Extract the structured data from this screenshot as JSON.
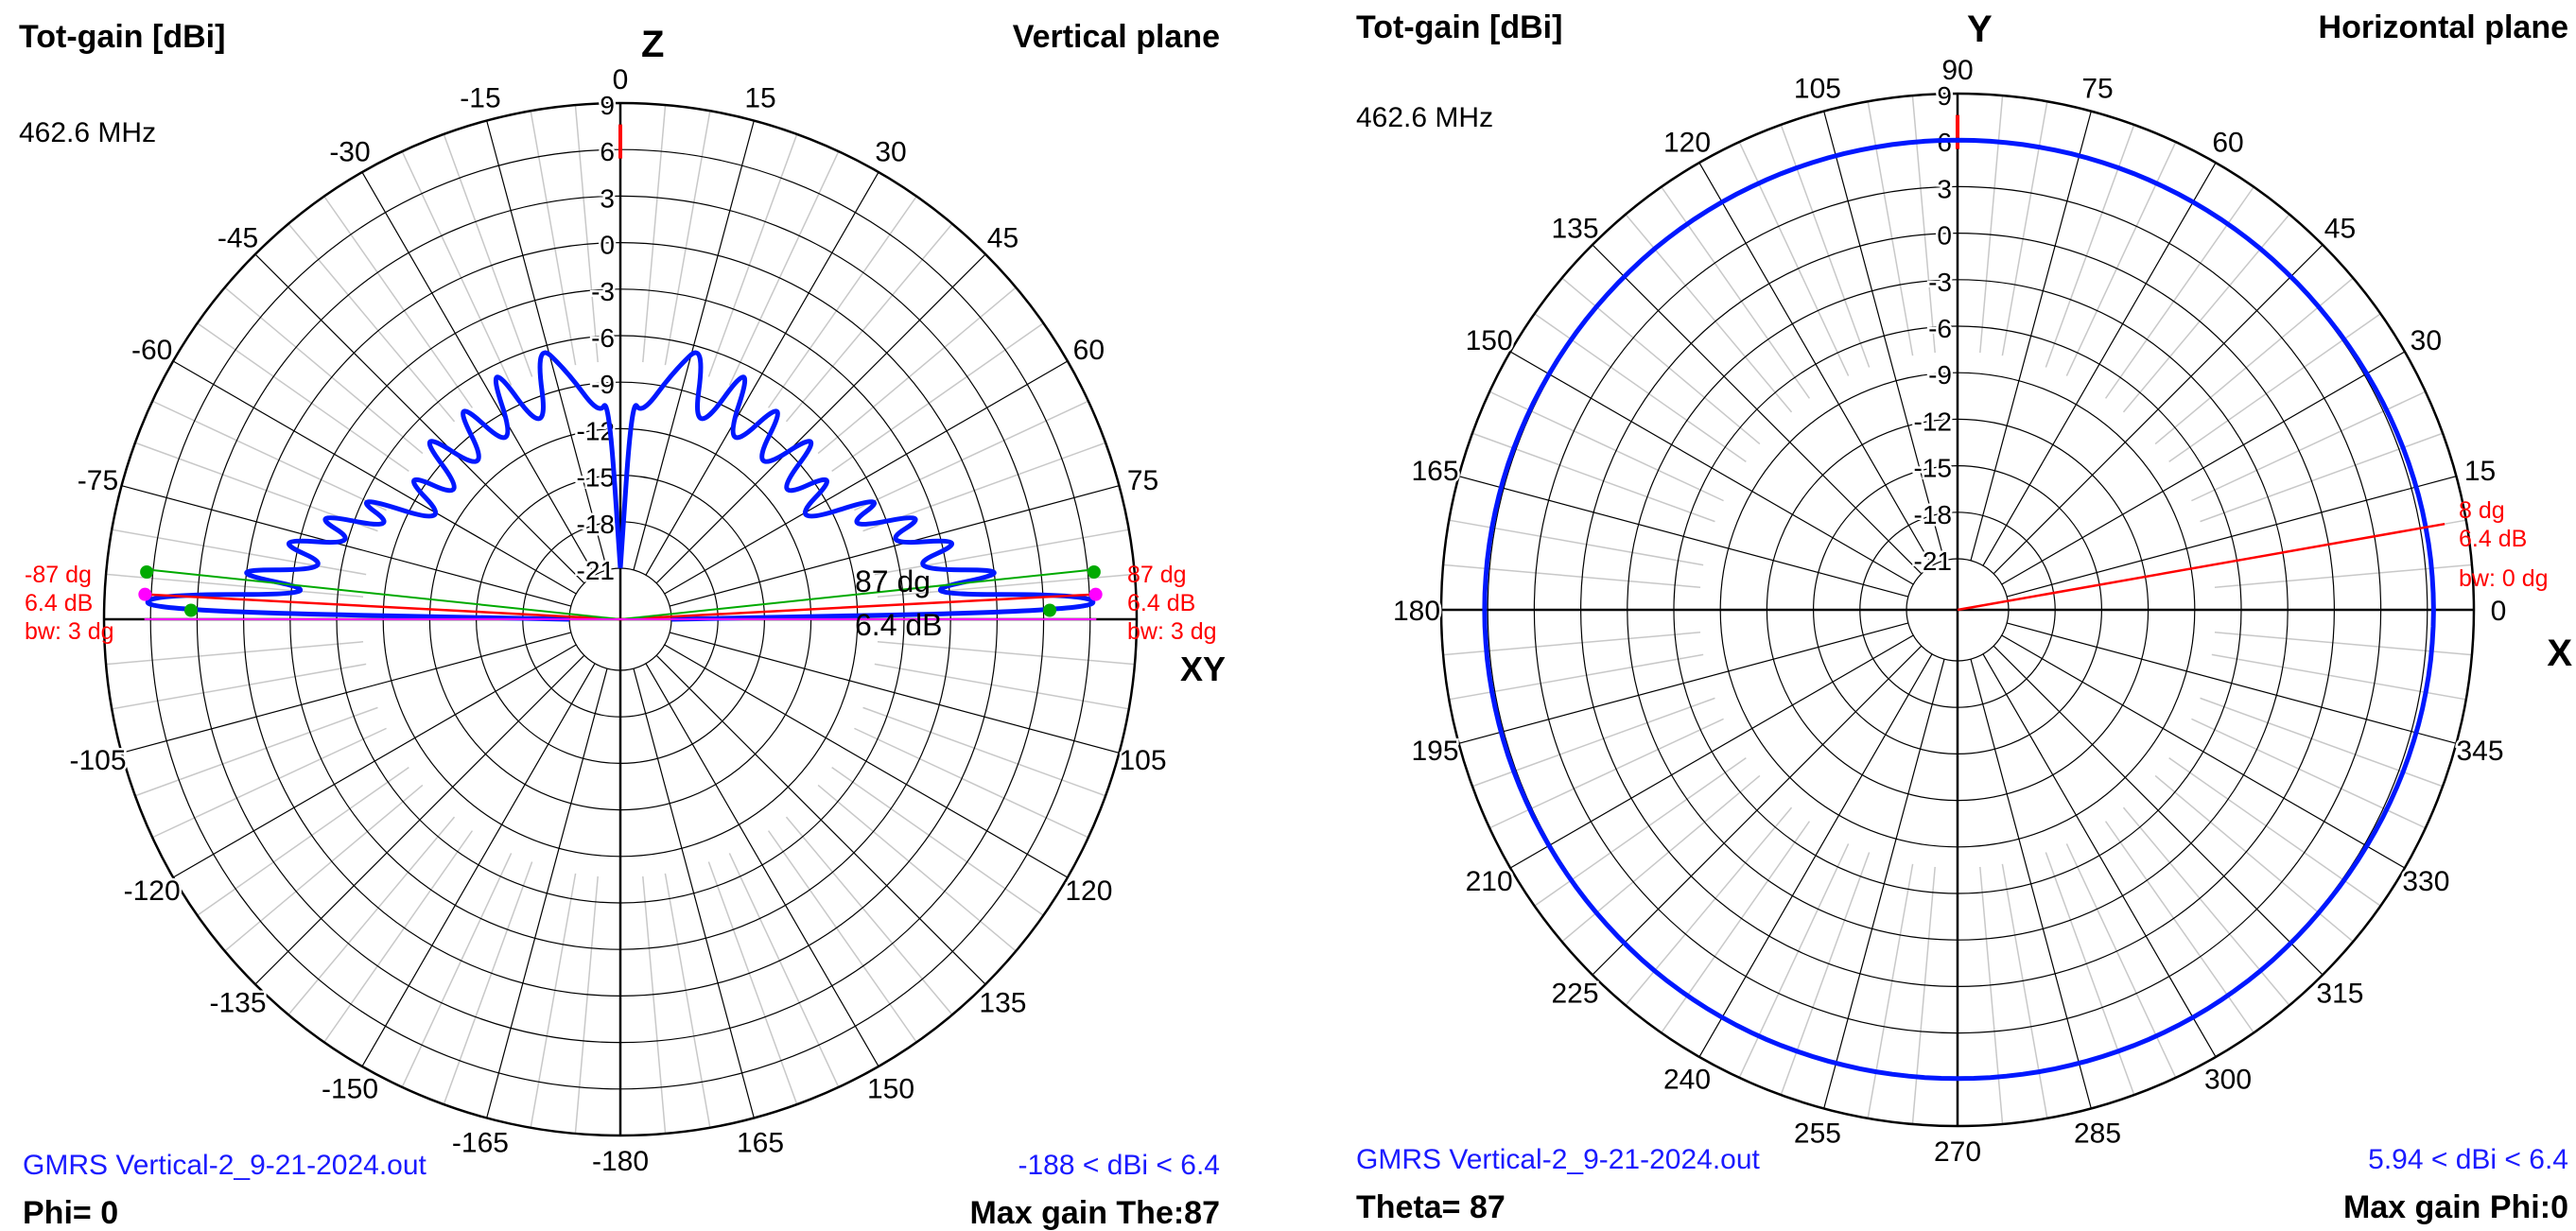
{
  "colors": {
    "pattern": "#0018ff",
    "marker": "#ff0000",
    "grid": "#000000",
    "minor_grid": "#c8c8c8",
    "footer_text": "#1a1aff",
    "beam_green": "#00aa00",
    "beam_magenta": "#ff00ff"
  },
  "plots": [
    {
      "title": "Tot-gain [dBi]",
      "plane": "Vertical plane",
      "frequency": "462.6 MHz",
      "filename": "GMRS Vertical-2_9-21-2024.out",
      "range": "-188 < dBi < 6.4",
      "bottom_left": "Phi= 0",
      "bottom_right": "Max gain The:87",
      "top_axis": "Z",
      "side_axis": "XY",
      "left_marker": {
        "angle": "-87 dg",
        "gain": "6.4 dB",
        "bw": "bw: 3 dg"
      },
      "right_marker": {
        "angle": "87 dg",
        "gain": "6.4 dB",
        "bw": "bw: 3 dg"
      },
      "center_marker": {
        "angle": "87 dg",
        "gain": "6.4 dB"
      },
      "angle_labels": [
        {
          "a": 0,
          "t": "0"
        },
        {
          "a": 15,
          "t": "15"
        },
        {
          "a": 30,
          "t": "30"
        },
        {
          "a": 45,
          "t": "45"
        },
        {
          "a": 60,
          "t": "60"
        },
        {
          "a": 75,
          "t": "75"
        },
        {
          "a": 105,
          "t": "105"
        },
        {
          "a": 120,
          "t": "120"
        },
        {
          "a": 135,
          "t": "135"
        },
        {
          "a": 150,
          "t": "150"
        },
        {
          "a": 165,
          "t": "165"
        },
        {
          "a": 180,
          "t": "-180"
        },
        {
          "a": 195,
          "t": "-165"
        },
        {
          "a": 210,
          "t": "-150"
        },
        {
          "a": 225,
          "t": "-135"
        },
        {
          "a": 240,
          "t": "-120"
        },
        {
          "a": 255,
          "t": "-105"
        },
        {
          "a": 285,
          "t": "-75"
        },
        {
          "a": 300,
          "t": "-60"
        },
        {
          "a": 315,
          "t": "-45"
        },
        {
          "a": 330,
          "t": "-30"
        },
        {
          "a": 345,
          "t": "-15"
        }
      ],
      "db_labels": [
        "9",
        "6",
        "3",
        "0",
        "-3",
        "-6",
        "-9",
        "-12",
        "-15",
        "-18",
        "-21"
      ]
    },
    {
      "title": "Tot-gain [dBi]",
      "plane": "Horizontal plane",
      "frequency": "462.6 MHz",
      "filename": "GMRS Vertical-2_9-21-2024.out",
      "range": "5.94 < dBi < 6.4",
      "bottom_left": "Theta= 87",
      "bottom_right": "Max gain Phi:0",
      "top_axis": "Y",
      "side_axis": "X",
      "right_marker": {
        "angle": "8 dg",
        "gain": "6.4 dB",
        "bw": "bw: 0 dg"
      },
      "angle_labels": [
        {
          "a": 0,
          "t": "90"
        },
        {
          "a": 15,
          "t": "75"
        },
        {
          "a": 30,
          "t": "60"
        },
        {
          "a": 45,
          "t": "45"
        },
        {
          "a": 60,
          "t": "30"
        },
        {
          "a": 75,
          "t": "15"
        },
        {
          "a": 90,
          "t": "0"
        },
        {
          "a": 105,
          "t": "345"
        },
        {
          "a": 120,
          "t": "330"
        },
        {
          "a": 135,
          "t": "315"
        },
        {
          "a": 150,
          "t": "300"
        },
        {
          "a": 165,
          "t": "285"
        },
        {
          "a": 180,
          "t": "270"
        },
        {
          "a": 195,
          "t": "255"
        },
        {
          "a": 210,
          "t": "240"
        },
        {
          "a": 225,
          "t": "225"
        },
        {
          "a": 240,
          "t": "210"
        },
        {
          "a": 255,
          "t": "195"
        },
        {
          "a": 270,
          "t": "180"
        },
        {
          "a": 285,
          "t": "165"
        },
        {
          "a": 300,
          "t": "150"
        },
        {
          "a": 315,
          "t": "135"
        },
        {
          "a": 330,
          "t": "120"
        },
        {
          "a": 345,
          "t": "105"
        }
      ],
      "db_labels": [
        "9",
        "6",
        "3",
        "0",
        "-3",
        "-6",
        "-9",
        "-12",
        "-15",
        "-18",
        "-21"
      ]
    }
  ],
  "chart_data": [
    {
      "type": "polar",
      "title": "Tot-gain [dBi]",
      "subtitle": "Vertical plane",
      "radial_range_dBi": [
        -21,
        9
      ],
      "radial_step_dBi": 3,
      "angular_step_deg": 15,
      "max_gain_dBi": 6.4,
      "max_gain_theta_deg": 87,
      "half_power_beamwidth_deg": 3,
      "min_dBi": -188,
      "series": [
        {
          "color": "#0018ff",
          "elevation_gain": [
            {
              "theta": 0,
              "dBi": -21
            },
            {
              "theta": 3,
              "dBi": -10
            },
            {
              "theta": 6,
              "dBi": -11
            },
            {
              "theta": 12,
              "dBi": -8
            },
            {
              "theta": 17,
              "dBi": -5.5
            },
            {
              "theta": 22,
              "dBi": -12
            },
            {
              "theta": 27,
              "dBi": -5
            },
            {
              "theta": 32,
              "dBi": -12
            },
            {
              "theta": 37,
              "dBi": -6
            },
            {
              "theta": 42,
              "dBi": -12
            },
            {
              "theta": 47,
              "dBi": -6
            },
            {
              "theta": 52,
              "dBi": -12
            },
            {
              "theta": 56,
              "dBi": -7
            },
            {
              "theta": 61,
              "dBi": -12
            },
            {
              "theta": 65,
              "dBi": -5
            },
            {
              "theta": 68,
              "dBi": -9
            },
            {
              "theta": 71,
              "dBi": -3
            },
            {
              "theta": 74,
              "dBi": -7
            },
            {
              "theta": 77,
              "dBi": -1
            },
            {
              "theta": 80,
              "dBi": -6
            },
            {
              "theta": 83,
              "dBi": 2
            },
            {
              "theta": 85,
              "dBi": -6
            },
            {
              "theta": 87,
              "dBi": 6.4
            },
            {
              "theta": 89,
              "dBi": 6
            },
            {
              "theta": 90,
              "dBi": -21
            }
          ]
        }
      ]
    },
    {
      "type": "polar",
      "title": "Tot-gain [dBi]",
      "subtitle": "Horizontal plane",
      "radial_range_dBi": [
        -21,
        9
      ],
      "radial_step_dBi": 3,
      "angular_step_deg": 15,
      "theta_deg": 87,
      "max_gain_phi_deg": 0,
      "max_gain_dBi": 6.4,
      "min_dBi": 5.94,
      "series": [
        {
          "color": "#0018ff",
          "azimuth_gain": [
            {
              "phi": 0,
              "dBi": 6.4
            },
            {
              "phi": 45,
              "dBi": 6.1
            },
            {
              "phi": 90,
              "dBi": 6.0
            },
            {
              "phi": 135,
              "dBi": 6.1
            },
            {
              "phi": 180,
              "dBi": 6.2
            },
            {
              "phi": 225,
              "dBi": 6.1
            },
            {
              "phi": 270,
              "dBi": 5.94
            },
            {
              "phi": 315,
              "dBi": 6.1
            },
            {
              "phi": 360,
              "dBi": 6.4
            }
          ]
        }
      ]
    }
  ]
}
